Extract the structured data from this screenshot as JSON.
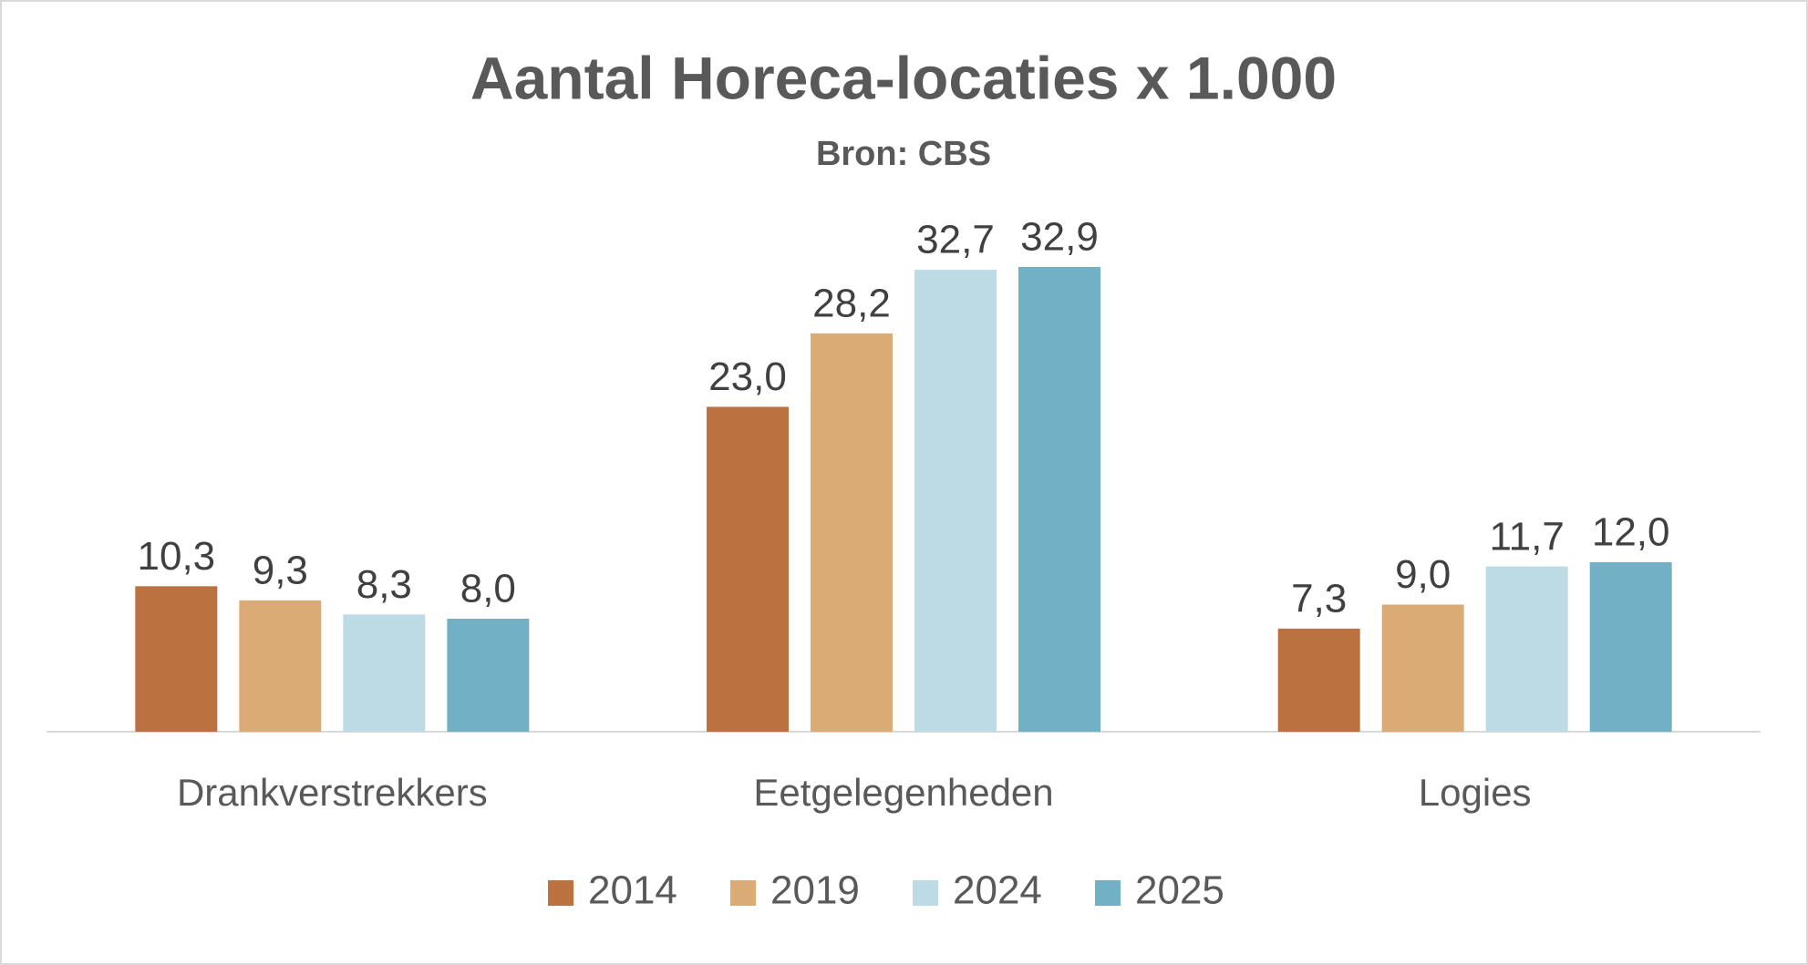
{
  "chart_data": {
    "type": "bar",
    "title": "Aantal Horeca-locaties x 1.000",
    "subtitle": "Bron: CBS",
    "categories": [
      "Drankverstrekkers",
      "Eetgelegenheden",
      "Logies"
    ],
    "series": [
      {
        "name": "2014",
        "color": "#bb7140",
        "values": [
          10.3,
          23.0,
          7.3
        ],
        "value_labels": [
          "10,3",
          "23,0",
          "7,3"
        ]
      },
      {
        "name": "2019",
        "color": "#dbab76",
        "values": [
          9.3,
          28.2,
          9.0
        ],
        "value_labels": [
          "9,3",
          "28,2",
          "9,0"
        ]
      },
      {
        "name": "2024",
        "color": "#bddbe4",
        "values": [
          8.3,
          32.7,
          11.7
        ],
        "value_labels": [
          "8,3",
          "32,7",
          "11,7"
        ]
      },
      {
        "name": "2025",
        "color": "#72b0c5",
        "values": [
          8.0,
          32.9,
          12.0
        ],
        "value_labels": [
          "8,0",
          "32,9",
          "12,0"
        ]
      }
    ],
    "legend": "bottom"
  }
}
